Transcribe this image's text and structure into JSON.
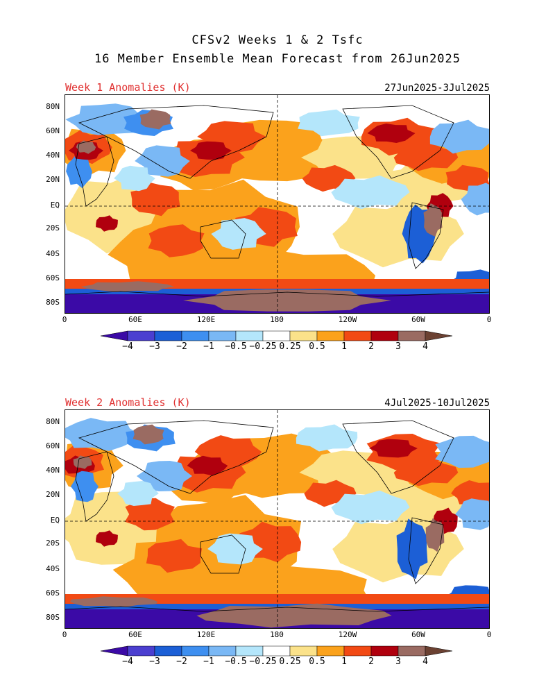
{
  "header": {
    "line1": "CFSv2 Weeks 1 & 2 Tsfc",
    "line2": "16 Member Ensemble Mean Forecast from 26Jun2025"
  },
  "panels": [
    {
      "label": "Week 1 Anomalies (K)",
      "dates": "27Jun2025-3Jul2025"
    },
    {
      "label": "Week 2 Anomalies (K)",
      "dates": "4Jul2025-10Jul2025"
    }
  ],
  "lat_labels": [
    "80N",
    "60N",
    "40N",
    "20N",
    "EQ",
    "20S",
    "40S",
    "60S",
    "80S"
  ],
  "lon_labels": [
    "0",
    "60E",
    "120E",
    "180",
    "120W",
    "60W",
    "0"
  ],
  "colorbar": {
    "labels": [
      "−4",
      "−3",
      "−2",
      "−1",
      "−0.5",
      "−0.25",
      "0.25",
      "0.5",
      "1",
      "2",
      "3",
      "4"
    ],
    "colors": [
      "#3b0aa6",
      "#4b3fd0",
      "#1c5fd6",
      "#3e8ff0",
      "#7ab8f5",
      "#b4e6fb",
      "#ffffff",
      "#fbe28a",
      "#fba21c",
      "#f24a14",
      "#b0000e",
      "#9a6b62",
      "#6b4132"
    ]
  },
  "map_colors": {
    "ocean_base": "#ffffff",
    "warm_light": "#fbe28a",
    "warm": "#fba21c",
    "hot": "#f24a14",
    "hotter": "#b0000e",
    "extreme": "#9a6b62",
    "cool_light": "#b4e6fb",
    "cool": "#7ab8f5",
    "cold": "#3e8ff0",
    "colder": "#1c5fd6",
    "coldest": "#3b0aa6"
  }
}
